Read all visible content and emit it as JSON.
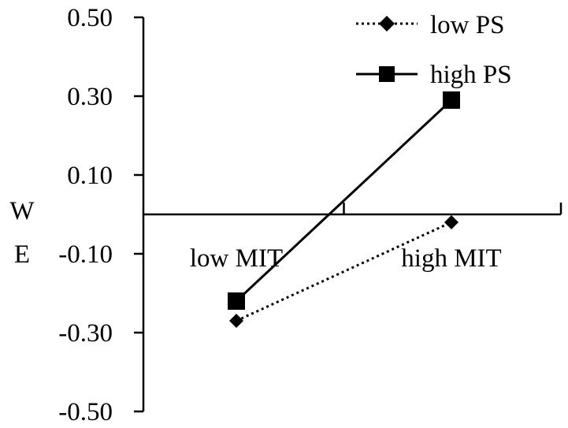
{
  "chart_data": {
    "type": "line",
    "categories": [
      "low MIT",
      "high MIT"
    ],
    "series": [
      {
        "name": "low PS",
        "values": [
          -0.27,
          -0.02
        ],
        "line_style": "dotted",
        "marker": "diamond"
      },
      {
        "name": "high PS",
        "values": [
          -0.22,
          0.29
        ],
        "line_style": "solid",
        "marker": "square"
      }
    ],
    "ylabel": [
      "W",
      "E"
    ],
    "ylim": [
      -0.5,
      0.5
    ],
    "yticks": [
      0.5,
      0.3,
      0.1,
      -0.1,
      -0.3,
      -0.5
    ],
    "ytick_labels": [
      "0.50",
      "0.30",
      "0.10",
      "-0.10",
      "-0.30",
      "-0.50"
    ],
    "grid": false,
    "legend_position": "top-right",
    "colors": {
      "line": "#000000",
      "background": "#ffffff"
    }
  }
}
